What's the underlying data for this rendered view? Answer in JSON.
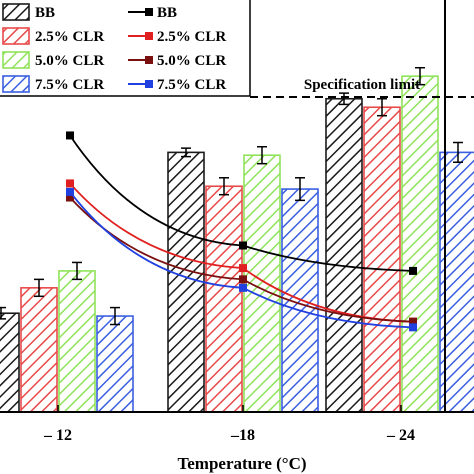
{
  "chart_data": {
    "type": "bar",
    "categories": [
      "– 12",
      "–18",
      "– 24"
    ],
    "xlabel": "Temperature (°C)",
    "ylabel": "",
    "series": [
      {
        "name": "BB",
        "color": "#1a1a1a",
        "values": [
          35,
          92,
          111
        ],
        "errors": [
          2,
          1.5,
          2
        ]
      },
      {
        "name": "2.5% CLR",
        "color": "#e84a4a",
        "values": [
          44,
          80,
          108
        ],
        "errors": [
          3,
          3,
          3
        ]
      },
      {
        "name": "5.0% CLR",
        "color": "#8fe35a",
        "values": [
          50,
          91,
          119
        ],
        "errors": [
          3,
          3,
          3
        ]
      },
      {
        "name": "7.5% CLR",
        "color": "#3a5fe0",
        "values": [
          34,
          79,
          92
        ],
        "errors": [
          3,
          4,
          3.5
        ]
      }
    ],
    "line_series": [
      {
        "name": "BB",
        "color": "#000000",
        "values": [
          98,
          59,
          50
        ]
      },
      {
        "name": "2.5% CLR",
        "color": "#e02020",
        "values": [
          81,
          51,
          32
        ]
      },
      {
        "name": "5.0% CLR",
        "color": "#7a1010",
        "values": [
          76,
          47,
          32
        ]
      },
      {
        "name": "7.5% CLR",
        "color": "#2040e0",
        "values": [
          78,
          44,
          30
        ]
      }
    ],
    "legend_position": "top-left",
    "reference_line": {
      "label": "Specification limit",
      "value": 124
    }
  }
}
